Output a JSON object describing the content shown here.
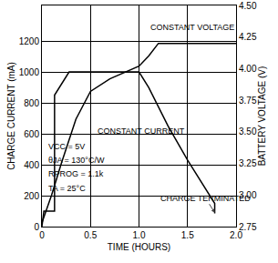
{
  "chart_data": {
    "type": "line",
    "x_label": "TIME (HOURS)",
    "y_label": "CHARGE CURRENT (mA)",
    "y2_label": "BATTERY VOLTAGE (V)",
    "xlim": [
      0,
      2.0
    ],
    "xticks": [
      0,
      0.5,
      {
        "value": 1.0,
        "label": "1.0"
      },
      1.5,
      {
        "value": 2.0,
        "label": "2.0"
      }
    ],
    "ylim": [
      0,
      1430
    ],
    "yticks": [
      0,
      200,
      400,
      600,
      800,
      1000,
      1200
    ],
    "y2lim": [
      2.75,
      4.5
    ],
    "y2ticks": [
      2.75,
      {
        "value": 3.0,
        "label": "3.00"
      },
      3.25,
      {
        "value": 3.5,
        "label": "3.50"
      },
      3.75,
      {
        "value": 4.0,
        "label": "4.00"
      },
      4.25,
      {
        "value": 4.5,
        "label": "4.50"
      }
    ],
    "grid": true,
    "series": [
      {
        "color": "#000000",
        "x": [
          0,
          0.02,
          0.13,
          0.13,
          0.28,
          1.0,
          1.1,
          1.3,
          1.5,
          1.7,
          1.78,
          1.78
        ],
        "values": [
          0,
          100,
          100,
          850,
          1000,
          1000,
          900,
          650,
          430,
          230,
          150,
          85
        ]
      },
      {
        "color": "#000000",
        "axis": "y2",
        "x": [
          0,
          0.1,
          0.2,
          0.35,
          0.5,
          0.7,
          1.0,
          1.1,
          1.2,
          1.3,
          2.0
        ],
        "values": [
          2.78,
          3.0,
          3.25,
          3.6,
          3.82,
          3.92,
          4.02,
          4.1,
          4.2,
          4.2,
          4.2
        ]
      }
    ],
    "annotations": [
      "CONSTANT VOLTAGE",
      "CONSTANT CURRENT",
      "CHARGE TERMINATED",
      "VCC = 5V",
      "θJA = 130°C/W",
      "RPROG = 1.1k",
      "TA = 25°C"
    ]
  }
}
